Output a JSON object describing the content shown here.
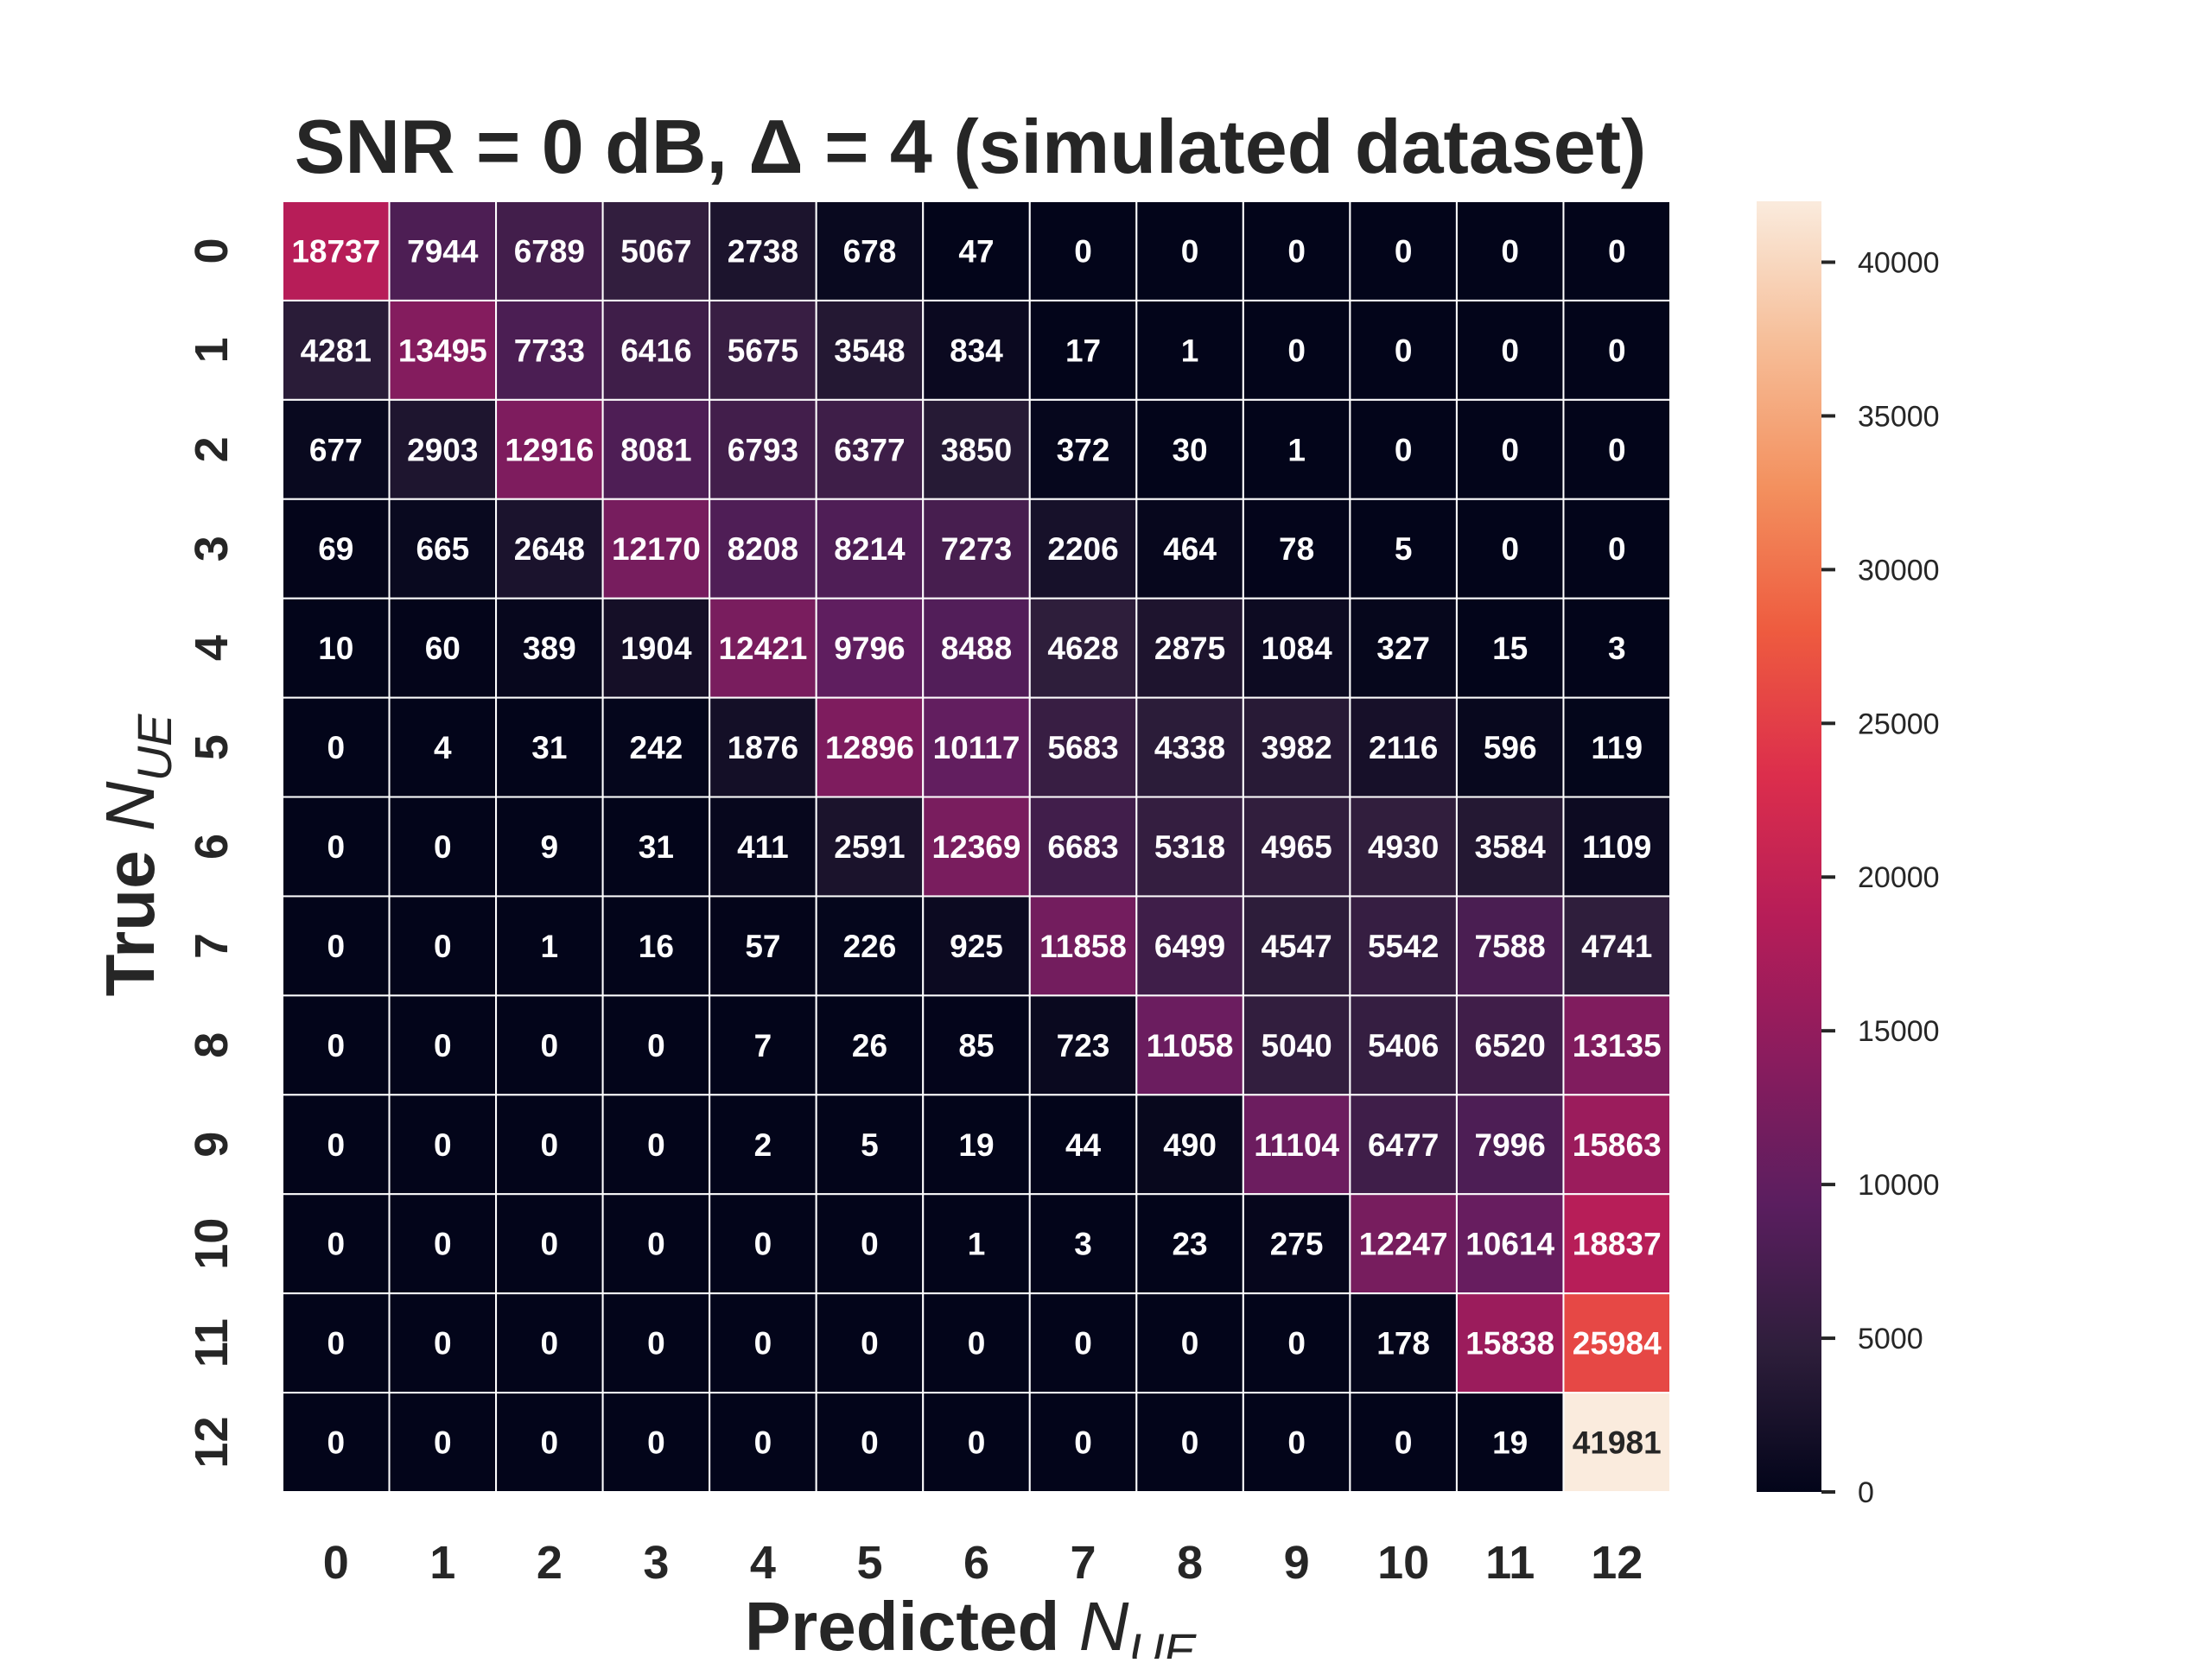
{
  "chart_data": {
    "type": "heatmap",
    "title": "SNR = 0 dB, Δ = 4 (simulated dataset)",
    "xlabel": {
      "prefix": "Predicted ",
      "symbol": "N",
      "subscript": "UE"
    },
    "ylabel": {
      "prefix": "True ",
      "symbol": "N",
      "subscript": "UE"
    },
    "x_categories": [
      "0",
      "1",
      "2",
      "3",
      "4",
      "5",
      "6",
      "7",
      "8",
      "9",
      "10",
      "11",
      "12"
    ],
    "y_categories": [
      "0",
      "1",
      "2",
      "3",
      "4",
      "5",
      "6",
      "7",
      "8",
      "9",
      "10",
      "11",
      "12"
    ],
    "matrix": [
      [
        18737,
        7944,
        6789,
        5067,
        2738,
        678,
        47,
        0,
        0,
        0,
        0,
        0,
        0
      ],
      [
        4281,
        13495,
        7733,
        6416,
        5675,
        3548,
        834,
        17,
        1,
        0,
        0,
        0,
        0
      ],
      [
        677,
        2903,
        12916,
        8081,
        6793,
        6377,
        3850,
        372,
        30,
        1,
        0,
        0,
        0
      ],
      [
        69,
        665,
        2648,
        12170,
        8208,
        8214,
        7273,
        2206,
        464,
        78,
        5,
        0,
        0
      ],
      [
        10,
        60,
        389,
        1904,
        12421,
        9796,
        8488,
        4628,
        2875,
        1084,
        327,
        15,
        3
      ],
      [
        0,
        4,
        31,
        242,
        1876,
        12896,
        10117,
        5683,
        4338,
        3982,
        2116,
        596,
        119
      ],
      [
        0,
        0,
        9,
        31,
        411,
        2591,
        12369,
        6683,
        5318,
        4965,
        4930,
        3584,
        1109
      ],
      [
        0,
        0,
        1,
        16,
        57,
        226,
        925,
        11858,
        6499,
        4547,
        5542,
        7588,
        4741
      ],
      [
        0,
        0,
        0,
        0,
        7,
        26,
        85,
        723,
        11058,
        5040,
        5406,
        6520,
        13135
      ],
      [
        0,
        0,
        0,
        0,
        2,
        5,
        19,
        44,
        490,
        11104,
        6477,
        7996,
        15863
      ],
      [
        0,
        0,
        0,
        0,
        0,
        0,
        1,
        3,
        23,
        275,
        12247,
        10614,
        18837
      ],
      [
        0,
        0,
        0,
        0,
        0,
        0,
        0,
        0,
        0,
        0,
        178,
        15838,
        25984
      ],
      [
        0,
        0,
        0,
        0,
        0,
        0,
        0,
        0,
        0,
        0,
        0,
        19,
        41981
      ]
    ],
    "colorbar": {
      "min": 0,
      "max": 41981,
      "ticks": [
        0,
        5000,
        10000,
        15000,
        20000,
        25000,
        30000,
        35000,
        40000
      ],
      "colormap": "rocket",
      "stops": [
        "#03051a",
        "#2e1e3b",
        "#5a1e5f",
        "#891c5e",
        "#b61d58",
        "#dc2e4c",
        "#ee5b3f",
        "#f3905e",
        "#f6bd97",
        "#faebdd"
      ]
    },
    "grid": true
  }
}
